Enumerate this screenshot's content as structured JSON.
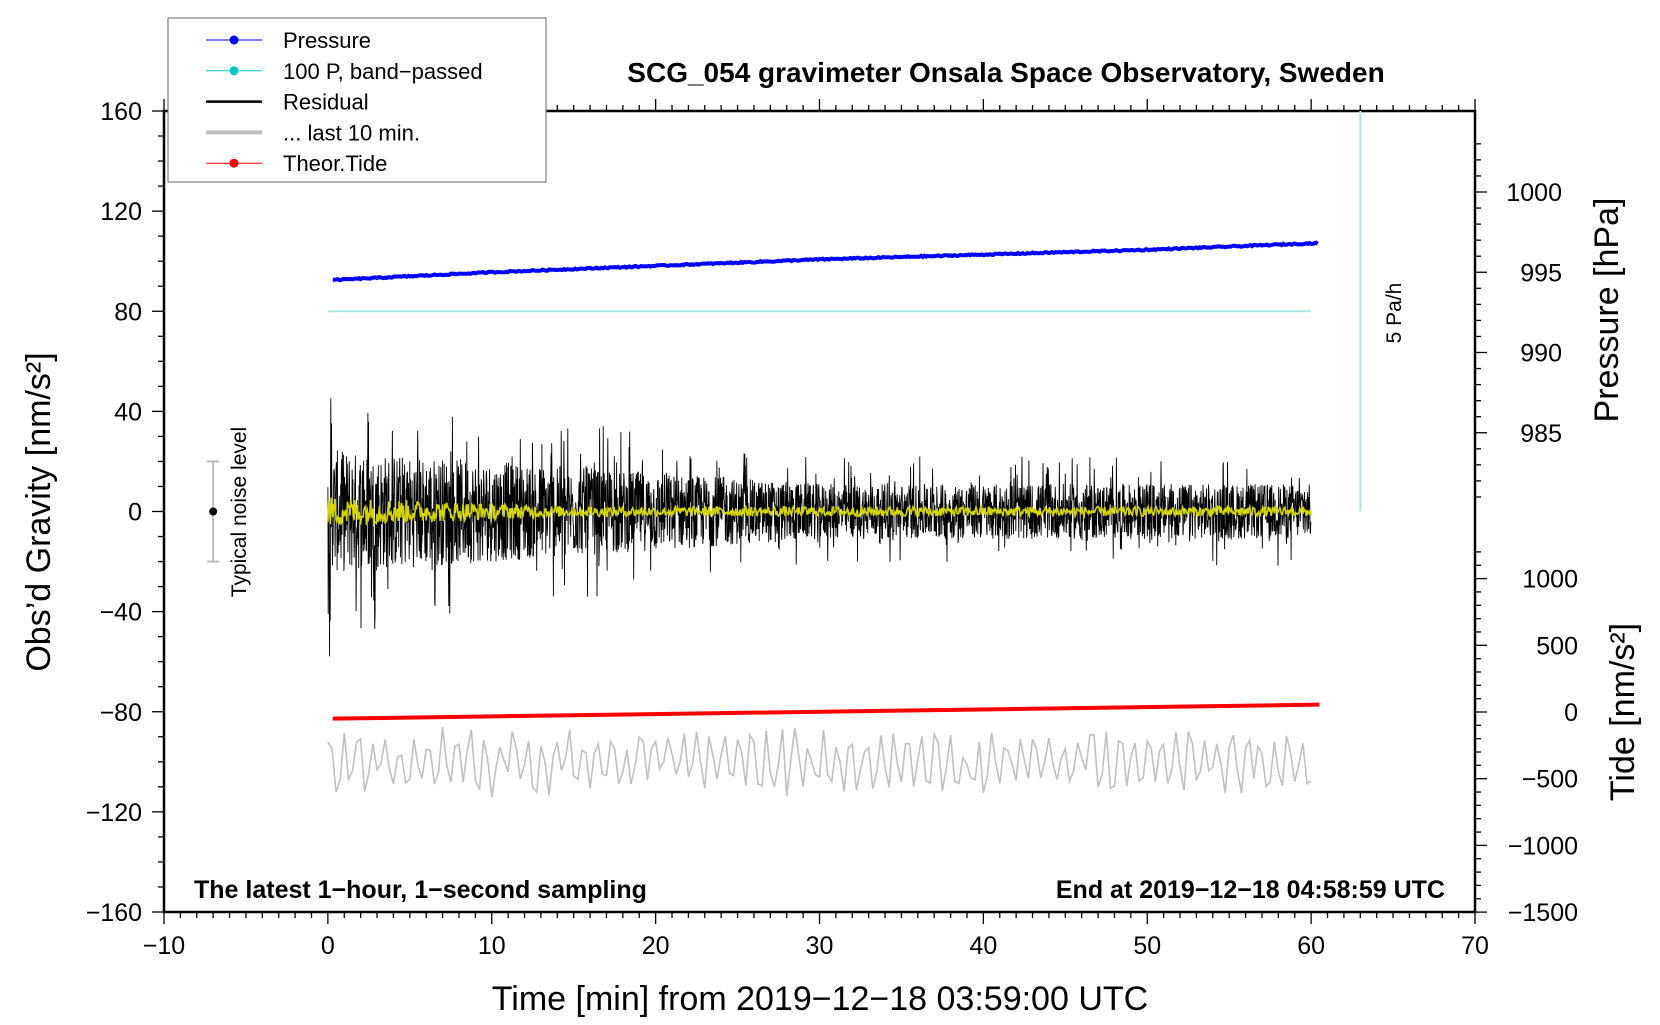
{
  "chart_data": {
    "type": "line",
    "title": "SCG_054 gravimeter Onsala Space Observatory, Sweden",
    "xlabel": "Time [min] from 2019−12−18 03:59:00 UTC",
    "ylabel": "Obs’d Gravity [nm/s²]",
    "y2label": "Pressure [hPa]",
    "y3label": "Tide [nm/s²]",
    "xlim": [
      -10,
      70
    ],
    "ylim": [
      -160,
      160
    ],
    "pressure_lim": [
      980.6,
      1003.5
    ],
    "tide_lim": [
      -1500,
      1200
    ],
    "x_ticks": [
      "−10",
      "0",
      "10",
      "20",
      "30",
      "40",
      "50",
      "60",
      "70"
    ],
    "x_tick_values": [
      -10,
      0,
      10,
      20,
      30,
      40,
      50,
      60,
      70
    ],
    "y_ticks": [
      "160",
      "120",
      "80",
      "40",
      "0",
      "−40",
      "−80",
      "−120",
      "−160"
    ],
    "y_tick_values": [
      160,
      120,
      80,
      40,
      0,
      -40,
      -80,
      -120,
      -160
    ],
    "pressure_ticks": [
      "1000",
      "995",
      "990",
      "985"
    ],
    "pressure_tick_values": [
      1000,
      995,
      990,
      985
    ],
    "tide_ticks": [
      "1000",
      "500",
      "0",
      "−500",
      "−1000",
      "−1500"
    ],
    "tide_tick_values": [
      1000,
      500,
      0,
      -500,
      -1000,
      -1500
    ],
    "legend": {
      "placement": "top-left",
      "entries": [
        {
          "label": "Pressure",
          "color": "#0000ff",
          "marker": true
        },
        {
          "label": "100 P, band−passed",
          "color": "#00c8c8",
          "marker": true
        },
        {
          "label": "Residual",
          "color": "#000000",
          "marker": false
        },
        {
          "label": "... last 10 min.",
          "color": "#c0c0c0",
          "marker": false
        },
        {
          "label": "Theor.Tide",
          "color": "#ff0000",
          "marker": true
        }
      ]
    },
    "series": [
      {
        "name": "Pressure",
        "axis": "pressure",
        "color": "#0000ff",
        "x": [
          0,
          10,
          20,
          30,
          40,
          50,
          60
        ],
        "values": [
          994.5,
          995.0,
          995.4,
          995.8,
          996.1,
          996.4,
          996.8
        ]
      },
      {
        "name": "100 P, band-passed",
        "axis": "gravity",
        "color": "#aee6e6",
        "x": [
          0,
          60
        ],
        "values": [
          80,
          80
        ]
      },
      {
        "name": "Residual",
        "axis": "gravity",
        "color": "#000000",
        "x_range": [
          0,
          60
        ],
        "center": 0,
        "amplitude_start": 45,
        "amplitude_end": 20
      },
      {
        "name": "Residual smoothed",
        "axis": "gravity",
        "color": "#d4d400",
        "x_range": [
          0,
          60
        ],
        "center": 0,
        "amplitude_start": 6,
        "amplitude_end": 2
      },
      {
        "name": "... last 10 min.",
        "axis": "gravity",
        "color": "#c0c0c0",
        "x_range": [
          0,
          60
        ],
        "center": -100,
        "amplitude": 12
      },
      {
        "name": "Theor.Tide",
        "axis": "tide",
        "color": "#ff0000",
        "x": [
          0,
          60
        ],
        "values": [
          -50,
          55
        ]
      }
    ],
    "annotations": {
      "rate_label": "5 Pa/h",
      "rate_line_x": 63,
      "rate_line_range": [
        0,
        160
      ],
      "noise_label": "Typical noise level",
      "noise_x": -7,
      "noise_range": [
        -20,
        20
      ],
      "bottom_left": "The latest 1−hour, 1−second sampling",
      "bottom_right": "End at 2019−12−18 04:58:59 UTC"
    }
  }
}
